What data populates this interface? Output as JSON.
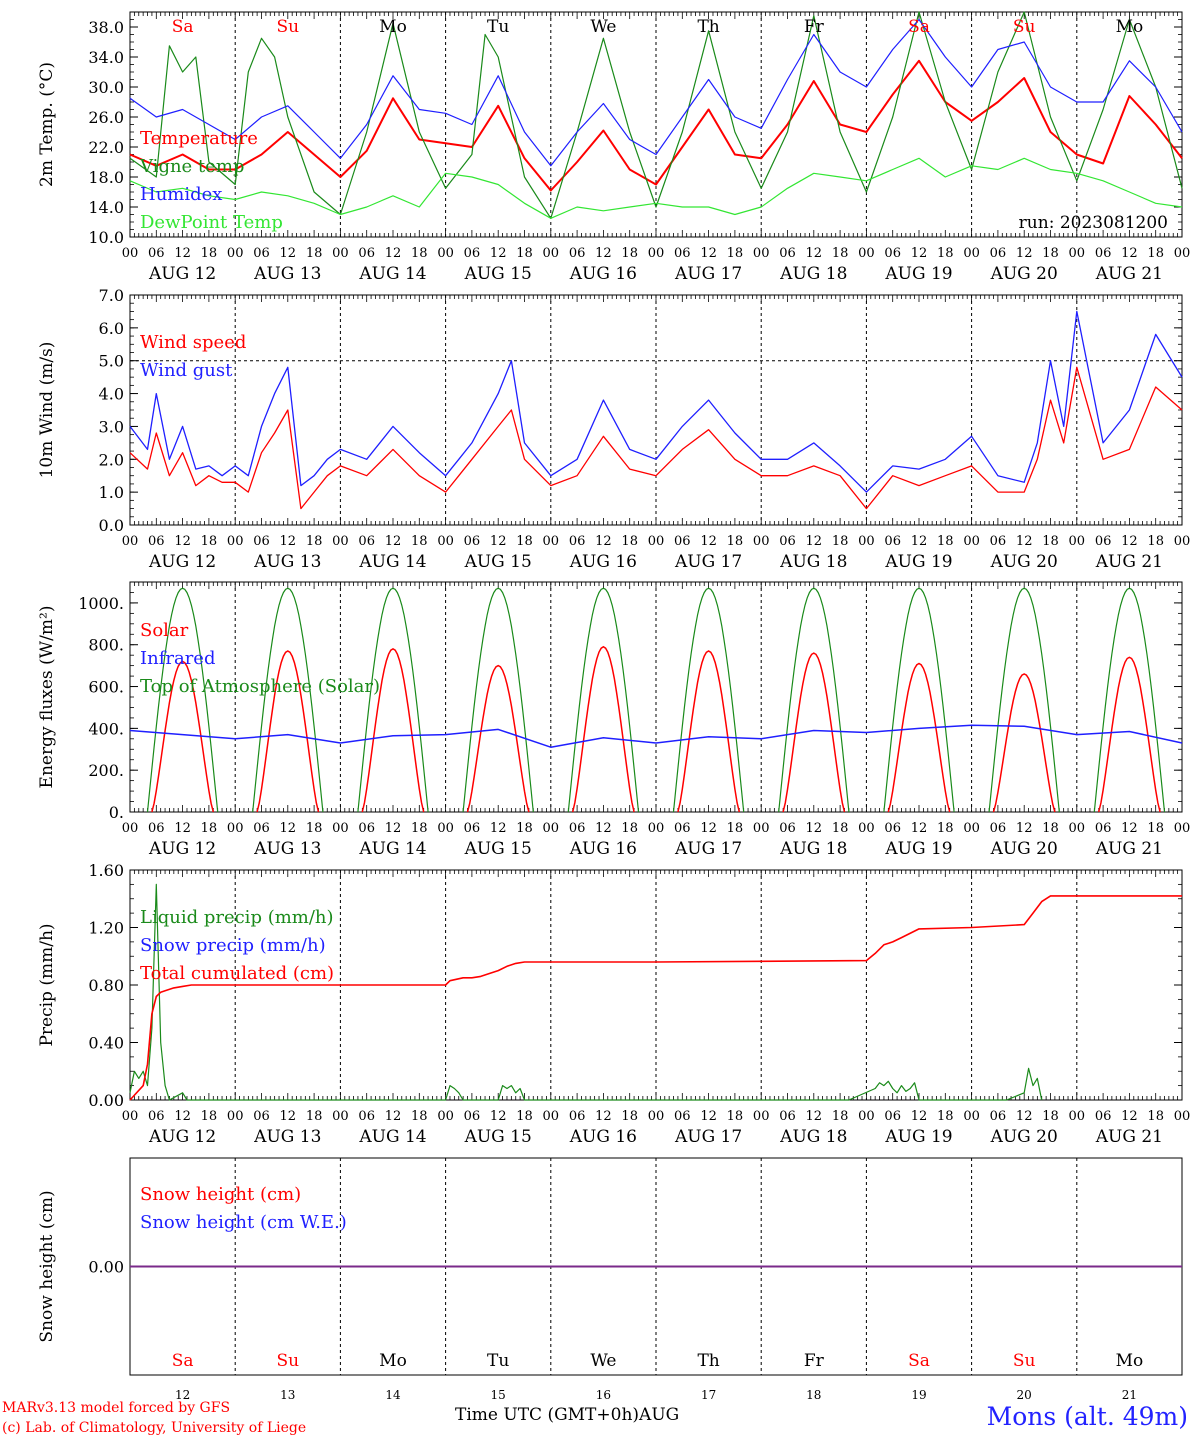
{
  "colors": {
    "red": "#ff0000",
    "green": "#1a8a1a",
    "blue": "#1f1fff",
    "lightgreen": "#33e633",
    "purple": "#7a2a8a",
    "black": "#000000"
  },
  "days": [
    "12",
    "13",
    "14",
    "15",
    "16",
    "17",
    "18",
    "19",
    "20",
    "21"
  ],
  "month": "AUG",
  "weekdays": [
    "Sa",
    "Su",
    "Mo",
    "Tu",
    "We",
    "Th",
    "Fr",
    "Sa",
    "Su",
    "Mo"
  ],
  "weekday_colors": [
    "red",
    "red",
    "black",
    "black",
    "black",
    "black",
    "black",
    "red",
    "red",
    "black"
  ],
  "hour_ticks": [
    "00",
    "06",
    "12",
    "18"
  ],
  "footer": {
    "credit_line1": "MARv3.13 model forced by GFS",
    "credit_line2": "(c) Lab. of Climatology, University of Liege",
    "xaxis_title": "Time UTC (GMT+0h)AUG",
    "station": "Mons (alt. 49m)"
  },
  "chart_data": [
    {
      "id": "temperature",
      "type": "line",
      "ylabel": "2m Temp. (°C)",
      "yticks": [
        "10.0",
        "14.0",
        "18.0",
        "22.0",
        "26.0",
        "30.0",
        "34.0",
        "38.0"
      ],
      "ylim": [
        10,
        40
      ],
      "annotation": "run: 2023081200",
      "x_unit": "hours since AUG 12 00 UTC",
      "series": [
        {
          "name": "Temperature",
          "color": "red",
          "x": [
            0,
            6,
            12,
            18,
            24,
            30,
            36,
            42,
            48,
            54,
            60,
            66,
            72,
            78,
            84,
            90,
            96,
            102,
            108,
            114,
            120,
            126,
            132,
            138,
            144,
            150,
            156,
            162,
            168,
            174,
            180,
            186,
            192,
            198,
            204,
            210,
            216,
            222,
            228,
            234,
            240
          ],
          "values": [
            21,
            19.5,
            21,
            19,
            19,
            21,
            24,
            21,
            18,
            21.5,
            28.5,
            23,
            22.5,
            22,
            27.5,
            20.5,
            16.2,
            20,
            24.2,
            19,
            17,
            22,
            27,
            21,
            20.5,
            25,
            30.8,
            25,
            24,
            29,
            33.5,
            28,
            25.5,
            28,
            31.2,
            24,
            21,
            19.8,
            28.8,
            25,
            20.5
          ]
        },
        {
          "name": "Vigne temp",
          "color": "green",
          "x": [
            0,
            6,
            9,
            12,
            15,
            18,
            24,
            27,
            30,
            33,
            36,
            42,
            48,
            54,
            60,
            66,
            72,
            78,
            81,
            84,
            90,
            96,
            102,
            108,
            114,
            120,
            126,
            132,
            138,
            144,
            150,
            156,
            162,
            168,
            174,
            180,
            186,
            192,
            198,
            204,
            210,
            216,
            222,
            228,
            234,
            240
          ],
          "values": [
            20.5,
            18,
            35.5,
            32,
            34,
            20,
            17,
            32,
            36.5,
            34,
            26,
            16,
            13,
            24,
            38.5,
            24,
            16.5,
            21,
            37,
            34,
            18,
            12.5,
            24,
            36.5,
            24,
            14,
            24,
            37.5,
            24,
            16.5,
            24,
            39.5,
            24,
            16,
            26,
            40,
            28,
            19,
            32,
            40,
            26,
            17.5,
            27,
            39,
            30,
            16.5
          ]
        },
        {
          "name": "Humidex",
          "color": "blue",
          "x": [
            0,
            6,
            12,
            18,
            24,
            30,
            36,
            42,
            48,
            54,
            60,
            66,
            72,
            78,
            84,
            90,
            96,
            102,
            108,
            114,
            120,
            126,
            132,
            138,
            144,
            150,
            156,
            162,
            168,
            174,
            180,
            186,
            192,
            198,
            204,
            210,
            216,
            222,
            228,
            234,
            240
          ],
          "values": [
            28.5,
            26,
            27,
            25,
            23,
            26,
            27.5,
            24,
            20.5,
            25,
            31.5,
            27,
            26.5,
            25,
            31.5,
            24,
            19.5,
            24,
            27.8,
            23,
            21,
            26,
            31,
            26,
            24.5,
            31,
            37,
            32,
            30,
            35,
            39,
            34,
            30,
            35,
            36,
            30,
            28,
            28,
            33.5,
            30,
            24
          ]
        },
        {
          "name": "DewPoint Temp",
          "color": "lightgreen",
          "x": [
            0,
            6,
            12,
            18,
            24,
            30,
            36,
            42,
            48,
            54,
            60,
            66,
            72,
            78,
            84,
            90,
            96,
            102,
            108,
            114,
            120,
            126,
            132,
            138,
            144,
            150,
            156,
            162,
            168,
            174,
            180,
            186,
            192,
            198,
            204,
            210,
            216,
            222,
            228,
            234,
            240
          ],
          "values": [
            17.5,
            16,
            16.5,
            15.5,
            15,
            16,
            15.5,
            14.5,
            13,
            14,
            15.5,
            14,
            18.5,
            18,
            17,
            14.5,
            12.5,
            14,
            13.5,
            14,
            14.5,
            14,
            14,
            13,
            14,
            16.5,
            18.5,
            18,
            17.5,
            19,
            20.5,
            18,
            19.5,
            19,
            20.5,
            19,
            18.5,
            17.5,
            16,
            14.5,
            14
          ]
        }
      ]
    },
    {
      "id": "wind",
      "type": "line",
      "ylabel": "10m Wind (m/s)",
      "yticks": [
        "0.0",
        "1.0",
        "2.0",
        "3.0",
        "4.0",
        "5.0",
        "6.0",
        "7.0"
      ],
      "ylim": [
        0,
        7
      ],
      "hline": 5.0,
      "x_unit": "hours since AUG 12 00 UTC",
      "series": [
        {
          "name": "Wind speed",
          "color": "red",
          "x": [
            0,
            4,
            6,
            9,
            12,
            15,
            18,
            21,
            24,
            27,
            30,
            33,
            36,
            39,
            42,
            45,
            48,
            54,
            60,
            66,
            72,
            75,
            78,
            84,
            87,
            90,
            96,
            102,
            108,
            114,
            120,
            126,
            132,
            138,
            144,
            150,
            156,
            162,
            168,
            174,
            180,
            186,
            192,
            198,
            204,
            207,
            210,
            213,
            216,
            222,
            228,
            234,
            240
          ],
          "values": [
            2.2,
            1.7,
            2.8,
            1.5,
            2.2,
            1.2,
            1.5,
            1.3,
            1.3,
            1.0,
            2.2,
            2.8,
            3.5,
            0.5,
            1.0,
            1.5,
            1.8,
            1.5,
            2.3,
            1.5,
            1.0,
            1.5,
            2.0,
            3.0,
            3.5,
            2.0,
            1.2,
            1.5,
            2.7,
            1.7,
            1.5,
            2.3,
            2.9,
            2.0,
            1.5,
            1.5,
            1.8,
            1.5,
            0.5,
            1.5,
            1.2,
            1.5,
            1.8,
            1.0,
            1.0,
            2.0,
            3.8,
            2.5,
            4.8,
            2.0,
            2.3,
            4.2,
            3.5
          ]
        },
        {
          "name": "Wind gust",
          "color": "blue",
          "x": [
            0,
            4,
            6,
            9,
            12,
            15,
            18,
            21,
            24,
            27,
            30,
            33,
            36,
            39,
            42,
            45,
            48,
            54,
            60,
            66,
            72,
            75,
            78,
            84,
            87,
            90,
            96,
            102,
            108,
            114,
            120,
            126,
            132,
            138,
            144,
            150,
            156,
            162,
            168,
            174,
            180,
            186,
            192,
            198,
            204,
            207,
            210,
            213,
            216,
            222,
            228,
            234,
            240
          ],
          "values": [
            3.0,
            2.3,
            4.0,
            2.0,
            3.0,
            1.7,
            1.8,
            1.5,
            1.8,
            1.5,
            3.0,
            4.0,
            4.8,
            1.2,
            1.5,
            2.0,
            2.3,
            2.0,
            3.0,
            2.2,
            1.5,
            2.0,
            2.5,
            4.0,
            5.0,
            2.5,
            1.5,
            2.0,
            3.8,
            2.3,
            2.0,
            3.0,
            3.8,
            2.8,
            2.0,
            2.0,
            2.5,
            1.8,
            1.0,
            1.8,
            1.7,
            2.0,
            2.7,
            1.5,
            1.3,
            2.5,
            5.0,
            3.0,
            6.5,
            2.5,
            3.5,
            5.8,
            4.5
          ]
        }
      ]
    },
    {
      "id": "energy",
      "type": "line",
      "ylabel": "Energy fluxes (W/m²)",
      "yticks": [
        "0.",
        "200.",
        "400.",
        "600.",
        "800.",
        "1000."
      ],
      "ylim": [
        0,
        1100
      ],
      "x_unit": "hours since AUG 12 00 UTC",
      "solar_peaks": [
        720,
        770,
        780,
        700,
        790,
        770,
        760,
        710,
        660,
        740
      ],
      "toa_peak": 1070,
      "series": [
        {
          "name": "Solar",
          "color": "red"
        },
        {
          "name": "Infrared",
          "color": "blue",
          "x": [
            0,
            12,
            24,
            36,
            48,
            60,
            72,
            84,
            96,
            108,
            120,
            132,
            144,
            156,
            168,
            180,
            192,
            204,
            216,
            228,
            240
          ],
          "values": [
            390,
            370,
            350,
            370,
            330,
            365,
            370,
            395,
            310,
            355,
            330,
            360,
            350,
            390,
            380,
            400,
            415,
            410,
            370,
            385,
            330
          ]
        },
        {
          "name": "Top of Atmosphere (Solar)",
          "color": "green"
        }
      ]
    },
    {
      "id": "precip",
      "type": "line",
      "ylabel": "Precip (mm/h)",
      "yticks": [
        "0.00",
        "0.40",
        "0.80",
        "1.20",
        "1.60"
      ],
      "ylim": [
        0,
        1.6
      ],
      "x_unit": "hours since AUG 12 00 UTC",
      "series": [
        {
          "name": "Liquid precip (mm/h)",
          "color": "green",
          "x": [
            0,
            1,
            2,
            3,
            4,
            5,
            6,
            7,
            8,
            9,
            12,
            13,
            72,
            73,
            74,
            75,
            76,
            84,
            85,
            86,
            87,
            88,
            89,
            90,
            164,
            170,
            171,
            172,
            173,
            174,
            175,
            176,
            177,
            178,
            179,
            180,
            200,
            204,
            205,
            206,
            207,
            208
          ],
          "values": [
            0.05,
            0.2,
            0.15,
            0.2,
            0.1,
            0.5,
            1.5,
            0.4,
            0.1,
            0,
            0.05,
            0,
            0,
            0.1,
            0.08,
            0.05,
            0,
            0,
            0.1,
            0.08,
            0.1,
            0.05,
            0.08,
            0,
            0,
            0.08,
            0.12,
            0.1,
            0.13,
            0.08,
            0.05,
            0.1,
            0.06,
            0.08,
            0.12,
            0,
            0,
            0.05,
            0.22,
            0.1,
            0.15,
            0
          ]
        },
        {
          "name": "Snow precip (mm/h)",
          "color": "blue"
        },
        {
          "name": "Total cumulated (cm)",
          "color": "red",
          "x": [
            0,
            3,
            4,
            5,
            6,
            7,
            8,
            10,
            12,
            14,
            16,
            24,
            48,
            72,
            73,
            76,
            78,
            80,
            82,
            84,
            86,
            88,
            90,
            96,
            120,
            144,
            168,
            170,
            172,
            174,
            176,
            180,
            192,
            204,
            206,
            208,
            210,
            212,
            240
          ],
          "values": [
            0,
            0.1,
            0.25,
            0.6,
            0.72,
            0.75,
            0.76,
            0.78,
            0.79,
            0.8,
            0.8,
            0.8,
            0.8,
            0.8,
            0.83,
            0.85,
            0.85,
            0.86,
            0.88,
            0.9,
            0.93,
            0.95,
            0.96,
            0.96,
            0.96,
            0.965,
            0.97,
            1.02,
            1.08,
            1.1,
            1.13,
            1.19,
            1.2,
            1.22,
            1.3,
            1.38,
            1.42,
            1.42,
            1.42
          ]
        }
      ]
    },
    {
      "id": "snow",
      "type": "line",
      "ylabel": "Snow height (cm)",
      "yticks": [
        "0.00"
      ],
      "ylim": [
        -1,
        1
      ],
      "x_unit": "hours since AUG 12 00 UTC",
      "series": [
        {
          "name": "Snow height (cm)",
          "color": "red",
          "x": [
            0,
            240
          ],
          "values": [
            0,
            0
          ]
        },
        {
          "name": "Snow height (cm W.E.)",
          "color": "blue",
          "x": [
            0,
            240
          ],
          "values": [
            0,
            0
          ]
        }
      ]
    }
  ]
}
